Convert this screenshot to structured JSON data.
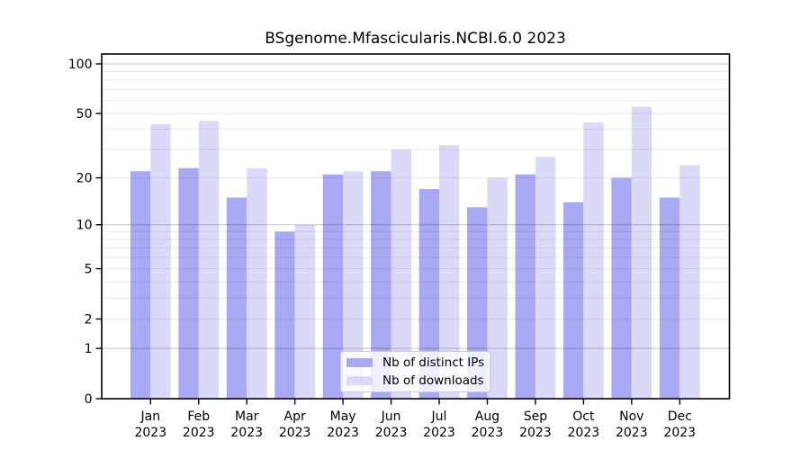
{
  "chart_data": {
    "type": "bar",
    "title": "BSgenome.Mfascicularis.NCBI.6.0 2023",
    "categories": [
      "Jan",
      "Feb",
      "Mar",
      "Apr",
      "May",
      "Jun",
      "Jul",
      "Aug",
      "Sep",
      "Oct",
      "Nov",
      "Dec"
    ],
    "x_year": "2023",
    "series": [
      {
        "name": "Nb of distinct IPs",
        "color": "#a8a8f3",
        "values": [
          22,
          23,
          15,
          9,
          21,
          22,
          17,
          13,
          21,
          14,
          20,
          15
        ]
      },
      {
        "name": "Nb of downloads",
        "color": "#dadaf8",
        "values": [
          43,
          45,
          23,
          10,
          22,
          30,
          32,
          20,
          27,
          44,
          55,
          24
        ]
      }
    ],
    "yscale": "log1p",
    "ylim": [
      0,
      116
    ],
    "yticks": [
      0,
      1,
      2,
      5,
      10,
      20,
      50,
      100
    ],
    "minor_gridlines": [
      2,
      3,
      4,
      5,
      6,
      7,
      8,
      9,
      20,
      30,
      40,
      50,
      60,
      70,
      80,
      90
    ],
    "decade_gridlines": [
      1,
      10,
      100
    ],
    "grid": true,
    "legend_position": "lower center inside",
    "colors": {
      "background": "#ffffff",
      "axis": "#000000",
      "grid_minor": "#e9e9e9",
      "grid_major": "#c4c4c4"
    }
  }
}
